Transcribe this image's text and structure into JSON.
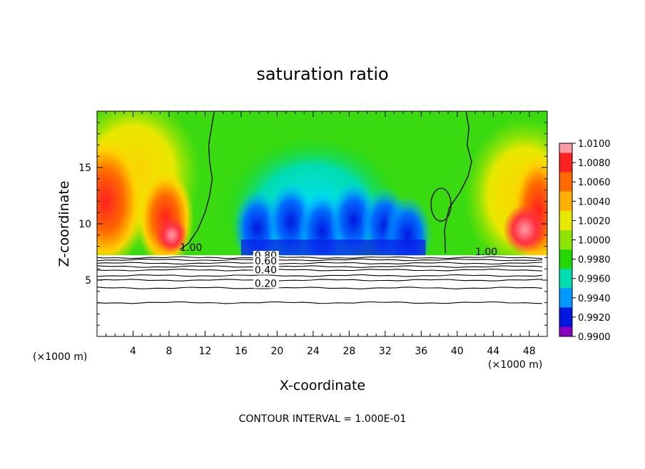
{
  "chart_data": {
    "type": "heatmap",
    "title": "saturation ratio",
    "xlabel": "X-coordinate",
    "ylabel": "Z-coordinate",
    "x_unit": "(×1000 m)",
    "z_unit": "(×1000 m)",
    "footer": "CONTOUR INTERVAL = 1.000E-01",
    "xlim": [
      0,
      50
    ],
    "ylim": [
      0,
      20
    ],
    "x_ticks": [
      "4",
      "8",
      "12",
      "16",
      "20",
      "24",
      "28",
      "32",
      "36",
      "40",
      "44",
      "48"
    ],
    "y_ticks": [
      "5",
      "10",
      "15"
    ],
    "colorbar": {
      "labels": [
        "1.0100",
        "1.0080",
        "1.0060",
        "1.0040",
        "1.0020",
        "1.0000",
        "0.9980",
        "0.9960",
        "0.9940",
        "0.9920",
        "0.9900"
      ],
      "colors": [
        "#ff9aa8",
        "#ff2020",
        "#ff6a00",
        "#ffb000",
        "#e8e800",
        "#8ee600",
        "#22d800",
        "#00ddb0",
        "#0099ff",
        "#0018e0",
        "#8a00c0"
      ]
    },
    "shaded_region": {
      "z_bottom": 7.2,
      "z_top": 20
    },
    "contour_labels": [
      {
        "text": "1.00",
        "x": 9.2,
        "z": 7.6
      },
      {
        "text": "1.00",
        "x": 42.0,
        "z": 7.2
      },
      {
        "text": "0.80",
        "x": 17.5,
        "z": 6.9
      },
      {
        "text": "0.60",
        "x": 17.5,
        "z": 6.4
      },
      {
        "text": "0.40",
        "x": 17.5,
        "z": 5.6
      },
      {
        "text": "0.20",
        "x": 17.5,
        "z": 4.4
      }
    ],
    "contours_below": [
      {
        "level": "0.90",
        "z": 7.0
      },
      {
        "level": "0.80",
        "z": 6.8
      },
      {
        "level": "0.70",
        "z": 6.5
      },
      {
        "level": "0.60",
        "z": 6.2
      },
      {
        "level": "0.50",
        "z": 5.9
      },
      {
        "level": "0.40",
        "z": 5.4
      },
      {
        "level": "0.30",
        "z": 5.0
      },
      {
        "level": "0.20",
        "z": 4.3
      },
      {
        "level": "0.10",
        "z": 3.0
      }
    ]
  }
}
